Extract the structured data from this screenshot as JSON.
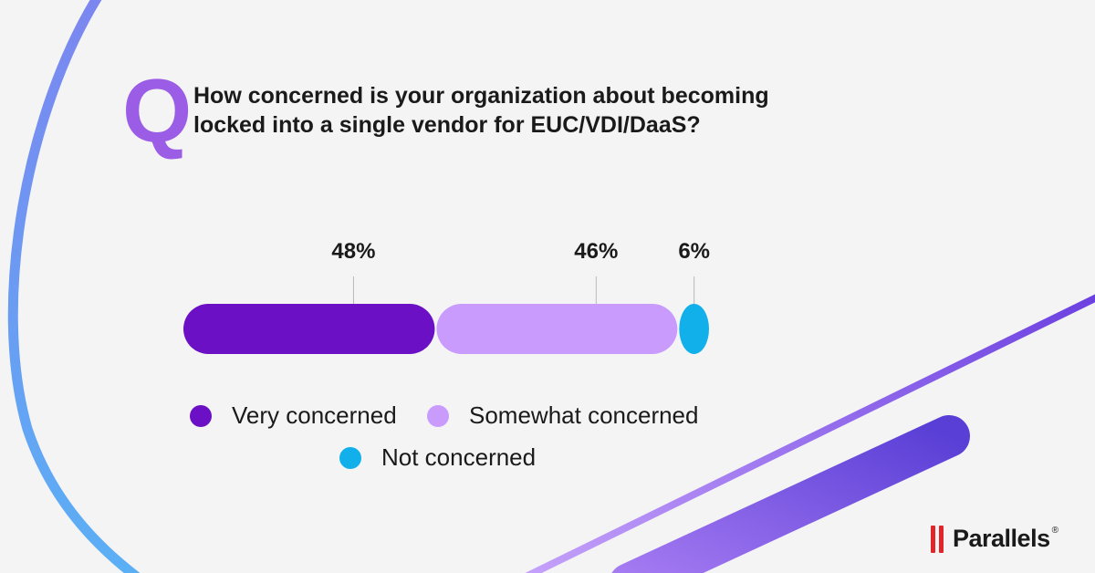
{
  "question": {
    "q_letter": "Q",
    "line1": "How concerned is your organization about becoming",
    "line2": "locked into a single vendor for EUC/VDI/DaaS?"
  },
  "chart_data": {
    "type": "bar",
    "orientation": "horizontal-stacked",
    "categories": [
      "Very concerned",
      "Somewhat concerned",
      "Not concerned"
    ],
    "values": [
      48,
      46,
      6
    ],
    "value_labels": [
      "48%",
      "46%",
      "6%"
    ],
    "colors": [
      "#6b10c4",
      "#c89bfc",
      "#12b0ea"
    ],
    "xlim": [
      0,
      100
    ],
    "grid": false,
    "legend_placement": "bottom"
  },
  "legend": [
    {
      "label": "Very concerned",
      "color": "#6b10c4"
    },
    {
      "label": "Somewhat concerned",
      "color": "#c89bfc"
    },
    {
      "label": "Not concerned",
      "color": "#12b0ea"
    }
  ],
  "brand": {
    "name": "Parallels",
    "reg": "®",
    "logo_color": "#e0262b"
  },
  "decor_colors": {
    "arc": "#6fa8f2",
    "stripe": "#7a4ae8"
  }
}
